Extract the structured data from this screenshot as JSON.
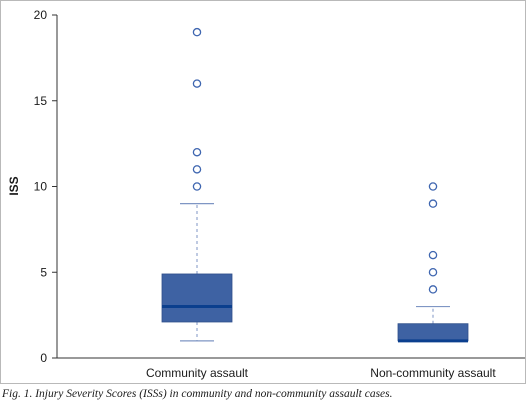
{
  "chart_data": {
    "type": "boxplot",
    "ylabel": "ISS",
    "ylim": [
      0,
      20
    ],
    "yticks": [
      0,
      5,
      10,
      15,
      20
    ],
    "categories": [
      "Community assault",
      "Non-community assault"
    ],
    "boxes": [
      {
        "category": "Community assault",
        "whisker_low": 1,
        "q1": 2.1,
        "median": 3,
        "q3": 4.9,
        "whisker_high": 9,
        "outliers": [
          10,
          11,
          12,
          16,
          19
        ]
      },
      {
        "category": "Non-community assault",
        "whisker_low": 1,
        "q1": 1,
        "median": 1,
        "q3": 2,
        "whisker_high": 3,
        "outliers": [
          4,
          5,
          6,
          9,
          10
        ]
      }
    ],
    "colors": {
      "box_fill": "#3e62a3",
      "median": "#0b3f8e",
      "whisker": "#7f96c4",
      "outlier": "#3f66b0",
      "axis": "#333333"
    }
  },
  "caption": "Fig. 1. Injury Severity Scores (ISSs) in community and non-community assault cases."
}
